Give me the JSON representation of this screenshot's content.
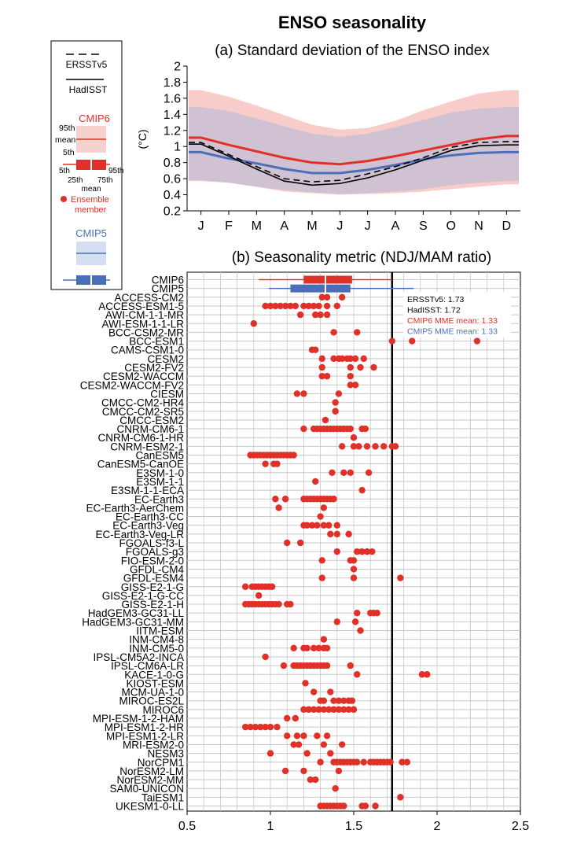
{
  "title": "ENSO seasonality",
  "colors": {
    "cmip6": "#e03027",
    "cmip5": "#4a6fba",
    "obs": "#000000",
    "grid": "#c8c8c8"
  },
  "legend": {
    "ersst": "ERSSTv5",
    "hadisst": "HadISST",
    "cmip6": "CMIP6",
    "p95": "95th",
    "mean": "mean",
    "p5": "5th",
    "box_5th": "5th",
    "box_25th": "25th",
    "box_75th": "75th",
    "box_95th": "95th",
    "box_mean": "mean",
    "ensemble_1": "Ensemble",
    "ensemble_2": "member",
    "cmip5": "CMIP5"
  },
  "chart_data": [
    {
      "type": "line",
      "title": "(a) Standard deviation of the ENSO index",
      "ylabel": "(°C)",
      "x": [
        "J",
        "F",
        "M",
        "A",
        "M",
        "J",
        "J",
        "A",
        "S",
        "O",
        "N",
        "D"
      ],
      "ylim": [
        0.2,
        2.0
      ],
      "yticks": [
        0.2,
        0.4,
        0.6,
        0.8,
        1,
        1.2,
        1.4,
        1.6,
        1.8,
        2
      ],
      "grid": false,
      "series": [
        {
          "name": "ERSSTv5",
          "style": "dashed",
          "values": [
            1.05,
            0.9,
            0.75,
            0.6,
            0.56,
            0.58,
            0.66,
            0.75,
            0.86,
            0.99,
            1.05,
            1.06
          ]
        },
        {
          "name": "HadISST",
          "style": "solid",
          "values": [
            1.03,
            0.88,
            0.72,
            0.57,
            0.52,
            0.54,
            0.61,
            0.71,
            0.83,
            0.95,
            1.01,
            1.02
          ]
        },
        {
          "name": "CMIP6",
          "style": "solid",
          "values": [
            1.11,
            1.02,
            0.94,
            0.86,
            0.8,
            0.78,
            0.82,
            0.88,
            0.95,
            1.02,
            1.09,
            1.13
          ],
          "p5": [
            0.57,
            0.55,
            0.5,
            0.44,
            0.42,
            0.4,
            0.41,
            0.42,
            0.44,
            0.47,
            0.5,
            0.53
          ],
          "p95": [
            1.7,
            1.62,
            1.51,
            1.39,
            1.27,
            1.21,
            1.23,
            1.32,
            1.45,
            1.56,
            1.66,
            1.7
          ]
        },
        {
          "name": "CMIP5",
          "style": "solid",
          "values": [
            0.93,
            0.85,
            0.79,
            0.72,
            0.67,
            0.67,
            0.71,
            0.77,
            0.84,
            0.89,
            0.92,
            0.93
          ],
          "p5": [
            0.58,
            0.55,
            0.5,
            0.46,
            0.43,
            0.41,
            0.42,
            0.44,
            0.47,
            0.52,
            0.55,
            0.57
          ],
          "p95": [
            1.49,
            1.44,
            1.35,
            1.25,
            1.16,
            1.12,
            1.16,
            1.24,
            1.33,
            1.42,
            1.47,
            1.49
          ]
        }
      ]
    },
    {
      "type": "scatter",
      "title": "(b) Seasonality metric (NDJ/MAM ratio)",
      "xlim": [
        0.5,
        2.5
      ],
      "xticks": [
        0.5,
        1,
        1.5,
        2,
        2.5
      ],
      "grid": true,
      "reference_line": 1.73,
      "annotations": [
        {
          "text": "ERSSTv5: 1.73",
          "color": "#000000"
        },
        {
          "text": "HadISST: 1.72",
          "color": "#000000"
        },
        {
          "text": "CMIP6 MME mean: 1.33",
          "color": "#e03027"
        },
        {
          "text": "CMIP5 MME mean: 1.33",
          "color": "#4a6fba"
        }
      ],
      "boxes": [
        {
          "name": "CMIP6",
          "p5": 0.93,
          "p25": 1.2,
          "mean": 1.33,
          "p75": 1.49,
          "p95": 1.73
        },
        {
          "name": "CMIP5",
          "p5": 0.99,
          "p25": 1.12,
          "mean": 1.33,
          "p75": 1.48,
          "p95": 1.86
        }
      ],
      "models": [
        {
          "name": "ACCESS-CM2",
          "values": [
            1.31,
            1.34,
            1.43
          ]
        },
        {
          "name": "ACCESS-ESM1-5",
          "values": [
            0.97,
            1.0,
            1.03,
            1.06,
            1.09,
            1.12,
            1.15,
            1.2,
            1.23,
            1.26,
            1.29,
            1.34,
            1.4
          ]
        },
        {
          "name": "AWI-CM-1-1-MR",
          "values": [
            1.18,
            1.27,
            1.3,
            1.34
          ]
        },
        {
          "name": "AWI-ESM-1-1-LR",
          "values": [
            0.9
          ]
        },
        {
          "name": "BCC-CSM2-MR",
          "values": [
            1.38,
            1.52
          ]
        },
        {
          "name": "BCC-ESM1",
          "values": [
            1.73,
            1.85,
            2.24
          ]
        },
        {
          "name": "CAMS-CSM1-0",
          "values": [
            1.25,
            1.27
          ]
        },
        {
          "name": "CESM2",
          "values": [
            1.31,
            1.38,
            1.41,
            1.43,
            1.46,
            1.48,
            1.51,
            1.56
          ]
        },
        {
          "name": "CESM2-FV2",
          "values": [
            1.31,
            1.48,
            1.54,
            1.62
          ]
        },
        {
          "name": "CESM2-WACCM",
          "values": [
            1.31,
            1.34,
            1.48
          ]
        },
        {
          "name": "CESM2-WACCM-FV2",
          "values": [
            1.48,
            1.51
          ]
        },
        {
          "name": "CIESM",
          "values": [
            1.16,
            1.2,
            1.41
          ]
        },
        {
          "name": "CMCC-CM2-HR4",
          "values": [
            1.39
          ]
        },
        {
          "name": "CMCC-CM2-SR5",
          "values": [
            1.39
          ]
        },
        {
          "name": "CMCC-ESM2",
          "values": [
            1.33
          ]
        },
        {
          "name": "CNRM-CM6-1",
          "values": [
            1.2,
            1.26,
            1.28,
            1.3,
            1.32,
            1.34,
            1.36,
            1.38,
            1.4,
            1.42,
            1.44,
            1.46,
            1.48,
            1.55,
            1.57
          ]
        },
        {
          "name": "CNRM-CM6-1-HR",
          "values": [
            1.5
          ]
        },
        {
          "name": "CNRM-ESM2-1",
          "values": [
            1.43,
            1.5,
            1.53,
            1.58,
            1.63,
            1.68,
            1.73,
            1.75
          ]
        },
        {
          "name": "CanESM5",
          "values": [
            0.88,
            0.9,
            0.92,
            0.94,
            0.96,
            0.98,
            1.0,
            1.02,
            1.04,
            1.06,
            1.08,
            1.1,
            1.12,
            1.14
          ]
        },
        {
          "name": "CanESM5-CanOE",
          "values": [
            0.97,
            1.02,
            1.04
          ]
        },
        {
          "name": "E3SM-1-0",
          "values": [
            1.37,
            1.44,
            1.48,
            1.59
          ]
        },
        {
          "name": "E3SM-1-1",
          "values": [
            1.27
          ]
        },
        {
          "name": "E3SM-1-1-ECA",
          "values": [
            1.55
          ]
        },
        {
          "name": "EC-Earth3",
          "values": [
            1.03,
            1.09,
            1.2,
            1.22,
            1.24,
            1.26,
            1.28,
            1.3,
            1.32,
            1.34,
            1.36,
            1.38
          ]
        },
        {
          "name": "EC-Earth3-AerChem",
          "values": [
            1.05,
            1.32
          ]
        },
        {
          "name": "EC-Earth3-CC",
          "values": [
            1.3
          ]
        },
        {
          "name": "EC-Earth3-Veg",
          "values": [
            1.2,
            1.22,
            1.25,
            1.28,
            1.32,
            1.35,
            1.4
          ]
        },
        {
          "name": "EC-Earth3-Veg-LR",
          "values": [
            1.36,
            1.4,
            1.47
          ]
        },
        {
          "name": "FGOALS-f3-L",
          "values": [
            1.1,
            1.18
          ]
        },
        {
          "name": "FGOALS-g3",
          "values": [
            1.4,
            1.52,
            1.55,
            1.58,
            1.61
          ]
        },
        {
          "name": "FIO-ESM-2-0",
          "values": [
            1.31,
            1.48,
            1.5
          ]
        },
        {
          "name": "GFDL-CM4",
          "values": [
            1.5
          ]
        },
        {
          "name": "GFDL-ESM4",
          "values": [
            1.31,
            1.5,
            1.78
          ]
        },
        {
          "name": "GISS-E2-1-G",
          "values": [
            0.85,
            0.89,
            0.91,
            0.93,
            0.95,
            0.97,
            0.99,
            1.01
          ]
        },
        {
          "name": "GISS-E2-1-G-CC",
          "values": [
            0.93
          ]
        },
        {
          "name": "GISS-E2-1-H",
          "values": [
            0.85,
            0.87,
            0.89,
            0.91,
            0.93,
            0.95,
            0.97,
            0.99,
            1.01,
            1.03,
            1.05,
            1.1,
            1.12
          ]
        },
        {
          "name": "HadGEM3-GC31-LL",
          "values": [
            1.52,
            1.6,
            1.62,
            1.64
          ]
        },
        {
          "name": "HadGEM3-GC31-MM",
          "values": [
            1.4,
            1.51
          ]
        },
        {
          "name": "IITM-ESM",
          "values": [
            1.54
          ]
        },
        {
          "name": "INM-CM4-8",
          "values": [
            1.32
          ]
        },
        {
          "name": "INM-CM5-0",
          "values": [
            1.14,
            1.2,
            1.22,
            1.26,
            1.29,
            1.32,
            1.34
          ]
        },
        {
          "name": "IPSL-CM5A2-INCA",
          "values": [
            0.97
          ]
        },
        {
          "name": "IPSL-CM6A-LR",
          "values": [
            1.08,
            1.14,
            1.16,
            1.18,
            1.2,
            1.22,
            1.24,
            1.26,
            1.28,
            1.3,
            1.32,
            1.34,
            1.48
          ]
        },
        {
          "name": "KACE-1-0-G",
          "values": [
            1.52,
            1.91,
            1.94
          ]
        },
        {
          "name": "KIOST-ESM",
          "values": [
            1.21
          ]
        },
        {
          "name": "MCM-UA-1-0",
          "values": [
            1.26,
            1.36
          ]
        },
        {
          "name": "MIROC-ES2L",
          "values": [
            1.3,
            1.32,
            1.38,
            1.41,
            1.44,
            1.47,
            1.49
          ]
        },
        {
          "name": "MIROC6",
          "values": [
            1.2,
            1.23,
            1.26,
            1.29,
            1.32,
            1.35,
            1.38,
            1.41,
            1.44,
            1.47,
            1.5
          ]
        },
        {
          "name": "MPI-ESM-1-2-HAM",
          "values": [
            1.1,
            1.15
          ]
        },
        {
          "name": "MPI-ESM1-2-HR",
          "values": [
            0.85,
            0.88,
            0.91,
            0.94,
            0.97,
            1.0,
            1.04
          ]
        },
        {
          "name": "MPI-ESM1-2-LR",
          "values": [
            1.1,
            1.16,
            1.2,
            1.28,
            1.34
          ]
        },
        {
          "name": "MRI-ESM2-0",
          "values": [
            1.14,
            1.17,
            1.32,
            1.43
          ]
        },
        {
          "name": "NESM3",
          "values": [
            1.0,
            1.22,
            1.36
          ]
        },
        {
          "name": "NorCPM1",
          "values": [
            1.3,
            1.38,
            1.4,
            1.42,
            1.44,
            1.46,
            1.48,
            1.5,
            1.52,
            1.56,
            1.6,
            1.62,
            1.64,
            1.66,
            1.68,
            1.7,
            1.72,
            1.79,
            1.82
          ]
        },
        {
          "name": "NorESM2-LM",
          "values": [
            1.09,
            1.2,
            1.41
          ]
        },
        {
          "name": "NorESM2-MM",
          "values": [
            1.24,
            1.27
          ]
        },
        {
          "name": "SAM0-UNICON",
          "values": [
            1.39
          ]
        },
        {
          "name": "TaiESM1",
          "values": [
            1.78
          ]
        },
        {
          "name": "UKESM1-0-LL",
          "values": [
            1.3,
            1.32,
            1.34,
            1.36,
            1.38,
            1.4,
            1.42,
            1.44,
            1.55,
            1.57,
            1.63
          ]
        }
      ]
    }
  ]
}
